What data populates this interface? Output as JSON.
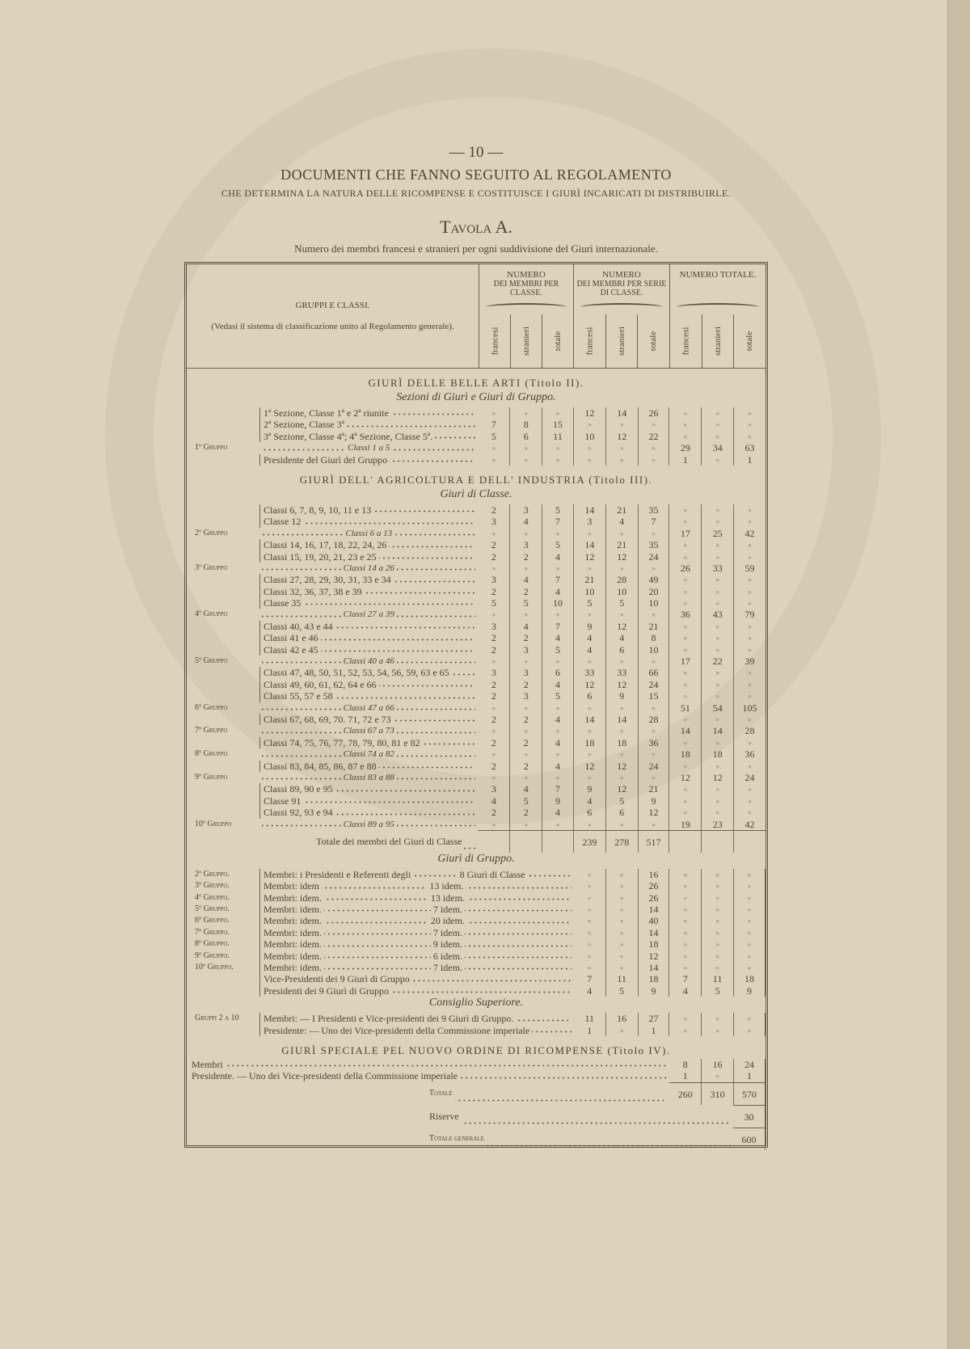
{
  "page_number": "— 10 —",
  "title": "DOCUMENTI CHE FANNO SEGUITO AL REGOLAMENTO",
  "subtitle": "CHE DETERMINA LA NATURA DELLE RICOMPENSE E COSTITUISCE I GIURÌ INCARICATI DI DISTRIBUIRLE.",
  "tavola": "Tavola A.",
  "caption": "Numero dei membri francesi e stranieri per ogni suddivisione del Giurì internazionale.",
  "header": {
    "left_title": "GRUPPI E CLASSI.",
    "left_note": "(Vedasi il sistema di classificazione unito al Regolamento generale).",
    "groups": [
      {
        "title": "NUMERO",
        "sub": "DEI MEMBRI PER CLASSE."
      },
      {
        "title": "NUMERO",
        "sub": "DEI MEMBRI PER SERIE DI CLASSE."
      },
      {
        "title": "NUMERO TOTALE.",
        "sub": ""
      }
    ],
    "cols": [
      "francesi",
      "stranieri",
      "totale"
    ]
  },
  "sections": [
    {
      "title": "GIURÌ DELLE BELLE ARTI (Titolo II).",
      "sub": "Sezioni di Giurì e Giurì di Gruppo.",
      "rows": [
        {
          "k": "c",
          "l": "1ª Sezione, Classe 1ª e 2ª riunite",
          "v": [
            "»",
            "»",
            "»",
            "12",
            "14",
            "26",
            "»",
            "»",
            "»"
          ]
        },
        {
          "k": "c",
          "l": "2ª Sezione, Classe 3ª",
          "v": [
            "7",
            "8",
            "15",
            "»",
            "»",
            "»",
            "»",
            "»",
            "»"
          ]
        },
        {
          "k": "c",
          "l": "3ª Sezione, Classe 4ª; 4ª Sezione, Classe 5ª.",
          "v": [
            "5",
            "6",
            "11",
            "10",
            "12",
            "22",
            "»",
            "»",
            "»"
          ]
        },
        {
          "k": "g",
          "g": "1º Gruppo",
          "r": "Classi 1 a 5",
          "v": [
            "»",
            "»",
            "»",
            "»",
            "»",
            "»",
            "29",
            "34",
            "63"
          ]
        },
        {
          "k": "c",
          "l": "Presidente del Giurì del Gruppo",
          "v": [
            "»",
            "»",
            "»",
            "»",
            "»",
            "»",
            "1",
            "»",
            "1"
          ]
        }
      ]
    },
    {
      "title": "GIURÌ DELL' AGRICOLTURA E DELL' INDUSTRIA (Titolo III).",
      "sub": "Giurì di Classe.",
      "rows": [
        {
          "k": "c",
          "l": "Classi 6, 7, 8, 9, 10, 11 e 13",
          "v": [
            "2",
            "3",
            "5",
            "14",
            "21",
            "35",
            "»",
            "»",
            "»"
          ]
        },
        {
          "k": "c",
          "l": "Classe 12",
          "v": [
            "3",
            "4",
            "7",
            "3",
            "4",
            "7",
            "»",
            "»",
            "»"
          ]
        },
        {
          "k": "g",
          "g": "2º Gruppo",
          "r": "Classi 6 a 13",
          "v": [
            "»",
            "»",
            "»",
            "»",
            "»",
            "»",
            "17",
            "25",
            "42"
          ]
        },
        {
          "k": "c",
          "l": "Classi 14, 16, 17, 18, 22, 24, 26",
          "v": [
            "2",
            "3",
            "5",
            "14",
            "21",
            "35",
            "»",
            "»",
            "»"
          ]
        },
        {
          "k": "c",
          "l": "Classi 15, 19, 20, 21, 23 e 25",
          "v": [
            "2",
            "2",
            "4",
            "12",
            "12",
            "24",
            "»",
            "»",
            "»"
          ]
        },
        {
          "k": "g",
          "g": "3º Gruppo",
          "r": "Classi 14 a 26",
          "v": [
            "»",
            "»",
            "»",
            "»",
            "»",
            "»",
            "26",
            "33",
            "59"
          ]
        },
        {
          "k": "c",
          "l": "Classi 27, 28, 29, 30, 31, 33 e 34",
          "v": [
            "3",
            "4",
            "7",
            "21",
            "28",
            "49",
            "»",
            "»",
            "»"
          ]
        },
        {
          "k": "c",
          "l": "Classi 32, 36, 37, 38 e 39",
          "v": [
            "2",
            "2",
            "4",
            "10",
            "10",
            "20",
            "»",
            "»",
            "»"
          ]
        },
        {
          "k": "c",
          "l": "Classe 35",
          "v": [
            "5",
            "5",
            "10",
            "5",
            "5",
            "10",
            "»",
            "»",
            "»"
          ]
        },
        {
          "k": "g",
          "g": "4º Gruppo",
          "r": "Classi 27 a 39",
          "v": [
            "»",
            "»",
            "»",
            "»",
            "»",
            "»",
            "36",
            "43",
            "79"
          ]
        },
        {
          "k": "c",
          "l": "Classi 40, 43 e 44",
          "v": [
            "3",
            "4",
            "7",
            "9",
            "12",
            "21",
            "»",
            "»",
            "»"
          ]
        },
        {
          "k": "c",
          "l": "Classi 41 e 46",
          "v": [
            "2",
            "2",
            "4",
            "4",
            "4",
            "8",
            "»",
            "»",
            "»"
          ]
        },
        {
          "k": "c",
          "l": "Classi 42 e 45",
          "v": [
            "2",
            "3",
            "5",
            "4",
            "6",
            "10",
            "»",
            "»",
            "»"
          ]
        },
        {
          "k": "g",
          "g": "5º Gruppo",
          "r": "Classi 40 a 46",
          "v": [
            "»",
            "»",
            "»",
            "»",
            "»",
            "»",
            "17",
            "22",
            "39"
          ]
        },
        {
          "k": "c",
          "l": "Classi 47, 48, 50, 51, 52, 53, 54, 56, 59, 63 e 65",
          "v": [
            "3",
            "3",
            "6",
            "33",
            "33",
            "66",
            "»",
            "»",
            "»"
          ]
        },
        {
          "k": "c",
          "l": "Classi 49, 60, 61, 62, 64 e 66",
          "v": [
            "2",
            "2",
            "4",
            "12",
            "12",
            "24",
            "»",
            "»",
            "»"
          ]
        },
        {
          "k": "c",
          "l": "Classi 55, 57 e 58",
          "v": [
            "2",
            "3",
            "5",
            "6",
            "9",
            "15",
            "»",
            "»",
            "»"
          ]
        },
        {
          "k": "g",
          "g": "6º Gruppo",
          "r": "Classi 47 a 66",
          "v": [
            "»",
            "»",
            "»",
            "»",
            "»",
            "»",
            "51",
            "54",
            "105"
          ]
        },
        {
          "k": "c",
          "l": "Classi 67, 68, 69, 70. 71, 72 e 73",
          "v": [
            "2",
            "2",
            "4",
            "14",
            "14",
            "28",
            "»",
            "»",
            "»"
          ]
        },
        {
          "k": "g",
          "g": "7º Gruppo",
          "r": "Classi 67 a 73",
          "v": [
            "»",
            "»",
            "»",
            "»",
            "»",
            "»",
            "14",
            "14",
            "28"
          ]
        },
        {
          "k": "c",
          "l": "Classi 74, 75, 76, 77, 78, 79, 80, 81 e 82",
          "v": [
            "2",
            "2",
            "4",
            "18",
            "18",
            "36",
            "»",
            "»",
            "»"
          ]
        },
        {
          "k": "g",
          "g": "8º Gruppo",
          "r": "Classi 74 a 82",
          "v": [
            "»",
            "»",
            "»",
            "»",
            "»",
            "»",
            "18",
            "18",
            "36"
          ]
        },
        {
          "k": "c",
          "l": "Classi 83, 84, 85, 86, 87 e 88",
          "v": [
            "2",
            "2",
            "4",
            "12",
            "12",
            "24",
            "»",
            "»",
            "»"
          ]
        },
        {
          "k": "g",
          "g": "9º Gruppo",
          "r": "Classi 83 a 88",
          "v": [
            "»",
            "»",
            "»",
            "»",
            "»",
            "»",
            "12",
            "12",
            "24"
          ]
        },
        {
          "k": "c",
          "l": "Classi 89, 90 e 95",
          "v": [
            "3",
            "4",
            "7",
            "9",
            "12",
            "21",
            "»",
            "»",
            "»"
          ]
        },
        {
          "k": "c",
          "l": "Classe 91",
          "v": [
            "4",
            "5",
            "9",
            "4",
            "5",
            "9",
            "»",
            "»",
            "»"
          ]
        },
        {
          "k": "c",
          "l": "Classi 92, 93 e 94",
          "v": [
            "2",
            "2",
            "4",
            "6",
            "6",
            "12",
            "»",
            "»",
            "»"
          ]
        },
        {
          "k": "g",
          "g": "10º Gruppo",
          "r": "Classi 89 a 95",
          "v": [
            "»",
            "»",
            "»",
            "»",
            "»",
            "»",
            "19",
            "23",
            "42"
          ]
        },
        {
          "k": "t",
          "l": "Totale dei membri del Giurì di Classe",
          "v": [
            "",
            "",
            "",
            "239",
            "278",
            "517",
            "",
            "",
            ""
          ]
        }
      ]
    },
    {
      "title": "",
      "sub": "Giurì di Gruppo.",
      "rows": [
        {
          "k": "m",
          "g": "2º Gruppo.",
          "l": "Membri: i Presidenti e Referenti degli",
          "r": "8 Giurì di Classe",
          "v": [
            "",
            "",
            "",
            "»",
            "»",
            "16",
            "»",
            "»",
            "»"
          ]
        },
        {
          "k": "m",
          "g": "3º Gruppo.",
          "l": "Membri: idem",
          "r": "13 idem.",
          "v": [
            "",
            "",
            "",
            "»",
            "»",
            "26",
            "»",
            "»",
            "»"
          ]
        },
        {
          "k": "m",
          "g": "4º Gruppo.",
          "l": "Membri: idem.",
          "r": "13 idem.",
          "v": [
            "",
            "",
            "",
            "»",
            "»",
            "26",
            "»",
            "»",
            "»"
          ]
        },
        {
          "k": "m",
          "g": "5º Gruppo.",
          "l": "Membri: idem.",
          "r": "7 idem.",
          "v": [
            "",
            "",
            "",
            "»",
            "»",
            "14",
            "»",
            "»",
            "»"
          ]
        },
        {
          "k": "m",
          "g": "6º Gruppo.",
          "l": "Membri: idem.",
          "r": "20 idem.",
          "v": [
            "",
            "",
            "",
            "»",
            "»",
            "40",
            "»",
            "»",
            "»"
          ]
        },
        {
          "k": "m",
          "g": "7º Gruppo.",
          "l": "Membri: idem.",
          "r": "7 idem.",
          "v": [
            "",
            "",
            "",
            "»",
            "»",
            "14",
            "»",
            "»",
            "»"
          ]
        },
        {
          "k": "m",
          "g": "8º Gruppo.",
          "l": "Membri: idem.",
          "r": "9 idem.",
          "v": [
            "",
            "",
            "",
            "»",
            "»",
            "18",
            "»",
            "»",
            "»"
          ]
        },
        {
          "k": "m",
          "g": "9º Gruppo.",
          "l": "Membri: idem.",
          "r": "6 idem.",
          "v": [
            "",
            "",
            "",
            "»",
            "»",
            "12",
            "»",
            "»",
            "»"
          ]
        },
        {
          "k": "m",
          "g": "10º Gruppo.",
          "l": "Membri: idem.",
          "r": "7 idem.",
          "v": [
            "",
            "",
            "",
            "»",
            "»",
            "14",
            "»",
            "»",
            "»"
          ]
        },
        {
          "k": "m",
          "g": "",
          "l": "Vice-Presidenti dei 9 Giurì di Gruppo",
          "r": "",
          "v": [
            "",
            "",
            "",
            "7",
            "11",
            "18",
            "7",
            "11",
            "18"
          ]
        },
        {
          "k": "m",
          "g": "",
          "l": "Presidenti dei 9 Giurì di Gruppo",
          "r": "",
          "v": [
            "",
            "",
            "",
            "4",
            "5",
            "9",
            "4",
            "5",
            "9"
          ]
        }
      ]
    },
    {
      "title": "",
      "sub": "Consiglio Superiore.",
      "rows": [
        {
          "k": "m",
          "g": "Gruppi 2 a 10",
          "l": "Membri: — I Presidenti e Vice-presidenti dei 9 Giurì di Gruppo.",
          "r": "",
          "v": [
            "",
            "",
            "",
            "11",
            "16",
            "27",
            "»",
            "»",
            "»"
          ]
        },
        {
          "k": "m",
          "g": "",
          "l": "Presidente: — Uno dei Vice-presidenti della Commissione imperiale",
          "r": "",
          "v": [
            "",
            "",
            "",
            "1",
            "»",
            "1",
            "»",
            "»",
            "»"
          ]
        }
      ]
    },
    {
      "title": "GIURÌ SPECIALE PEL NUOVO ORDINE DI RICOMPENSE (Titolo IV).",
      "sub": "",
      "rows": [
        {
          "k": "s",
          "l": "Membri",
          "v": [
            "",
            "",
            "",
            "",
            "",
            "",
            "8",
            "16",
            "24"
          ]
        },
        {
          "k": "s",
          "l": "Presidente. — Uno dei Vice-presidenti della Commissione imperiale",
          "v": [
            "",
            "",
            "",
            "",
            "",
            "",
            "1",
            "»",
            "1"
          ]
        },
        {
          "k": "st",
          "l": "Totale",
          "v": [
            "",
            "",
            "",
            "",
            "",
            "",
            "260",
            "310",
            "570"
          ]
        },
        {
          "k": "st",
          "l": "Riserve",
          "v": [
            "",
            "",
            "",
            "",
            "",
            "",
            "",
            "",
            "30"
          ]
        },
        {
          "k": "st",
          "l": "Totale generale",
          "v": [
            "",
            "",
            "",
            "",
            "",
            "",
            "",
            "",
            "600"
          ]
        }
      ]
    }
  ]
}
